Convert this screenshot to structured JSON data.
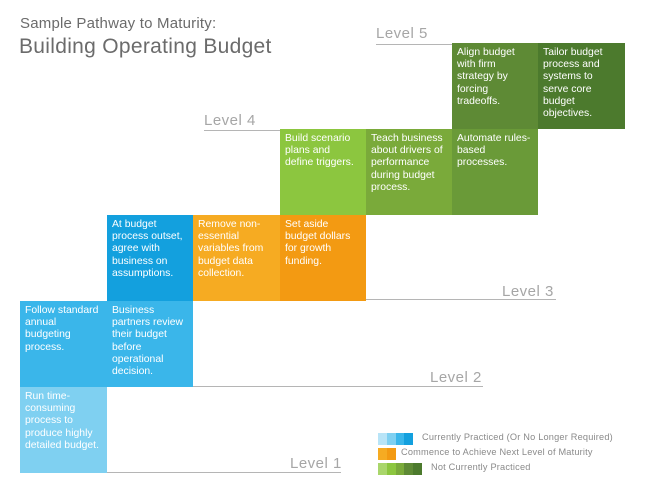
{
  "header": {
    "subtitle": "Sample Pathway to Maturity:",
    "title": "Building Operating Budget"
  },
  "levels": {
    "l1": "Level 1",
    "l2": "Level 2",
    "l3": "Level 3",
    "l4": "Level 4",
    "l5": "Level 5"
  },
  "cells": {
    "c1": "Run time-consuming process to produce highly detailed budget.",
    "c2": "Follow standard annual budgeting process.",
    "c3": "Business partners review their budget before operational decision.",
    "c4": "At budget process outset, agree with business on assumptions.",
    "c5": "Remove non-essential variables from budget data collection.",
    "c6": "Set aside budget dollars for growth funding.",
    "c7": "Build scenario plans and define triggers.",
    "c8": "Teach business about drivers of performance during budget process.",
    "c9": "Automate rules-based processes.",
    "c10": "Align budget with firm strategy by forcing tradeoffs.",
    "c11": "Tailor budget process and systems to serve core budget objectives."
  },
  "legend": {
    "practiced": "Currently Practiced (Or No Longer Required)",
    "commence": "Commence to Achieve Next Level of Maturity",
    "not_practiced": "Not Currently Practiced"
  },
  "colors": {
    "light_blue": "#7fd0f1",
    "mid_blue": "#3ab6ea",
    "blue": "#13a0de",
    "orange_light": "#f6ab22",
    "orange": "#f39a12",
    "green_light": "#8cc63f",
    "green": "#7aaa3a",
    "green_dark": "#5e8a35",
    "green_darker": "#4c7a2d"
  }
}
